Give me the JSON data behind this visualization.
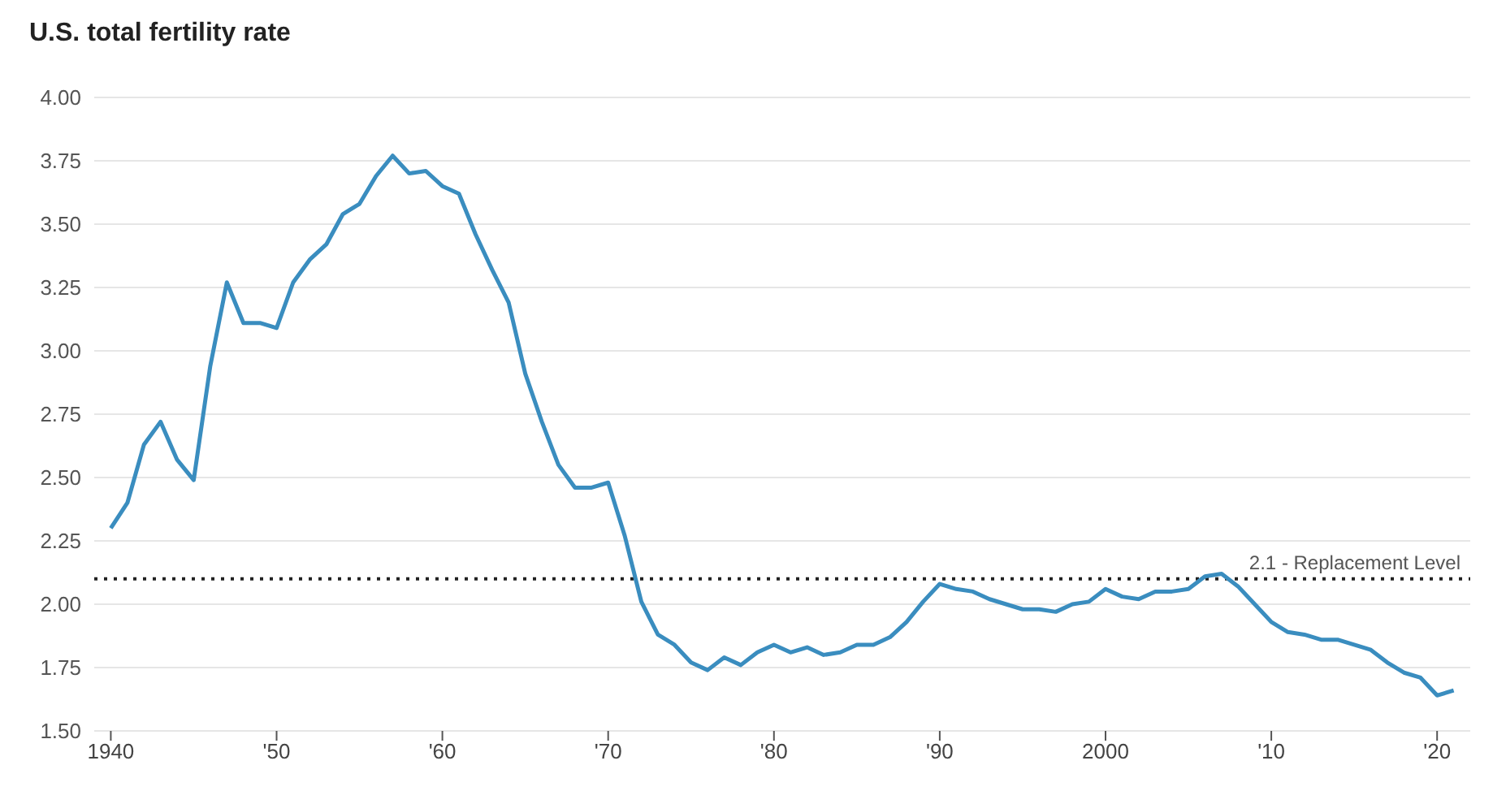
{
  "chart_data": {
    "type": "line",
    "title": "U.S. total fertility rate",
    "x": [
      1940,
      1941,
      1942,
      1943,
      1944,
      1945,
      1946,
      1947,
      1948,
      1949,
      1950,
      1951,
      1952,
      1953,
      1954,
      1955,
      1956,
      1957,
      1958,
      1959,
      1960,
      1961,
      1962,
      1963,
      1964,
      1965,
      1966,
      1967,
      1968,
      1969,
      1970,
      1971,
      1972,
      1973,
      1974,
      1975,
      1976,
      1977,
      1978,
      1979,
      1980,
      1981,
      1982,
      1983,
      1984,
      1985,
      1986,
      1987,
      1988,
      1989,
      1990,
      1991,
      1992,
      1993,
      1994,
      1995,
      1996,
      1997,
      1998,
      1999,
      2000,
      2001,
      2002,
      2003,
      2004,
      2005,
      2006,
      2007,
      2008,
      2009,
      2010,
      2011,
      2012,
      2013,
      2014,
      2015,
      2016,
      2017,
      2018,
      2019,
      2020,
      2021
    ],
    "series": [
      {
        "color": "#3a8dbf",
        "values": [
          2.3,
          2.4,
          2.63,
          2.72,
          2.57,
          2.49,
          2.94,
          3.27,
          3.11,
          3.11,
          3.09,
          3.27,
          3.36,
          3.42,
          3.54,
          3.58,
          3.69,
          3.77,
          3.7,
          3.71,
          3.65,
          3.62,
          3.46,
          3.32,
          3.19,
          2.91,
          2.72,
          2.55,
          2.46,
          2.46,
          2.48,
          2.27,
          2.01,
          1.88,
          1.84,
          1.77,
          1.74,
          1.79,
          1.76,
          1.81,
          1.84,
          1.81,
          1.83,
          1.8,
          1.81,
          1.84,
          1.84,
          1.87,
          1.93,
          2.01,
          2.08,
          2.06,
          2.05,
          2.02,
          2.0,
          1.98,
          1.98,
          1.97,
          2.0,
          2.01,
          2.06,
          2.03,
          2.02,
          2.05,
          2.05,
          2.06,
          2.11,
          2.12,
          2.07,
          2.0,
          1.93,
          1.89,
          1.88,
          1.86,
          1.86,
          1.84,
          1.82,
          1.77,
          1.73,
          1.71,
          1.64,
          1.66
        ]
      }
    ],
    "xlim": [
      1939,
      2022
    ],
    "xticks": [
      1940,
      {
        "value": 1950,
        "label": "'50"
      },
      {
        "value": 1960,
        "label": "'60"
      },
      {
        "value": 1970,
        "label": "'70"
      },
      {
        "value": 1980,
        "label": "'80"
      },
      {
        "value": 1990,
        "label": "'90"
      },
      2000,
      {
        "value": 2010,
        "label": "'10"
      },
      {
        "value": 2020,
        "label": "'20"
      }
    ],
    "ylim": [
      1.5,
      4
    ],
    "yticks": [
      {
        "value": 1.5,
        "label": "1.50"
      },
      {
        "value": 1.75,
        "label": "1.75"
      },
      {
        "value": 2,
        "label": "2.00"
      },
      {
        "value": 2.25,
        "label": "2.25"
      },
      {
        "value": 2.5,
        "label": "2.50"
      },
      {
        "value": 2.75,
        "label": "2.75"
      },
      {
        "value": 3,
        "label": "3.00"
      },
      {
        "value": 3.25,
        "label": "3.25"
      },
      {
        "value": 3.5,
        "label": "3.50"
      },
      {
        "value": 3.75,
        "label": "3.75"
      },
      {
        "value": 4,
        "label": "4.00"
      }
    ],
    "grid": "y",
    "marker": "none",
    "line_style": "solid",
    "ref_lines": [
      {
        "axis": "y",
        "value": 2.1,
        "label": "2.1 - Replacement Level",
        "line_style": "dotted",
        "color": "#222222"
      }
    ]
  }
}
